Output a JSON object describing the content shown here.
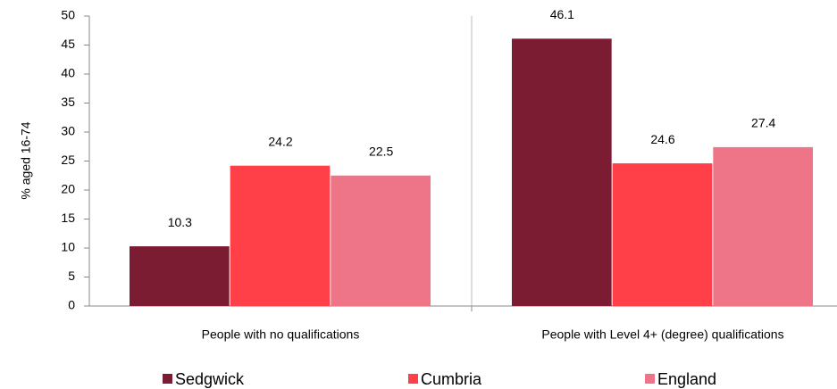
{
  "chart_data": {
    "type": "bar",
    "y_label": "% aged 16-74",
    "categories": [
      "People with no qualifications",
      "People with Level 4+ (degree) qualifications"
    ],
    "series": [
      {
        "name": "Sedgwick",
        "color": "#7b1c33",
        "values": [
          10.3,
          46.1
        ]
      },
      {
        "name": "Cumbria",
        "color": "#ff4049",
        "values": [
          24.2,
          24.6
        ]
      },
      {
        "name": "England",
        "color": "#ee7488",
        "values": [
          22.5,
          27.4
        ]
      }
    ],
    "ylim": [
      0,
      50
    ],
    "yticks": [
      0,
      5,
      10,
      15,
      20,
      25,
      30,
      35,
      40,
      45,
      50
    ]
  }
}
